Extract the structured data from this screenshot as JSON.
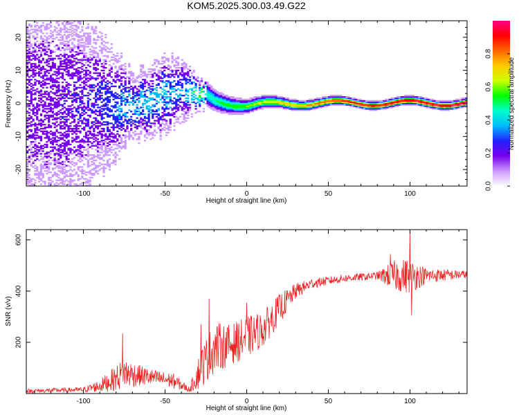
{
  "title": "KOM5.2025.300.03.49.G22",
  "chart_data": [
    {
      "type": "heatmap",
      "name": "spectrogram",
      "xlabel": "Height of straight line (km)",
      "ylabel": "Frequency (Hz)",
      "xlim": [
        -135,
        135
      ],
      "ylim": [
        -25,
        25
      ],
      "xticks": [
        -100,
        -50,
        0,
        50,
        100
      ],
      "yticks": [
        -20,
        -10,
        0,
        10,
        20
      ],
      "colorbar": {
        "label": "Normalized spectral amplitude",
        "range": [
          0,
          1
        ],
        "ticks": [
          0.0,
          0.2,
          0.4,
          0.6,
          0.8
        ],
        "colors": [
          "#ffffff",
          "#cc99ff",
          "#7700ee",
          "#2222ff",
          "#00bbff",
          "#00ffcc",
          "#00ff00",
          "#ccff00",
          "#ffcc00",
          "#ff6600",
          "#ff0000",
          "#ff0088"
        ]
      },
      "ridge": [
        {
          "x": -130,
          "f": 0,
          "amp": 0.15,
          "spread": 22
        },
        {
          "x": -90,
          "f": 0,
          "amp": 0.2,
          "spread": 12
        },
        {
          "x": -70,
          "f": -1,
          "amp": 0.3,
          "spread": 5
        },
        {
          "x": -50,
          "f": 2,
          "amp": 0.3,
          "spread": 6
        },
        {
          "x": -40,
          "f": 4,
          "amp": 0.25,
          "spread": 5
        },
        {
          "x": -28,
          "f": 3,
          "amp": 0.45,
          "spread": 2
        },
        {
          "x": -20,
          "f": 1,
          "amp": 0.5,
          "spread": 1.5
        },
        {
          "x": 0,
          "f": -1,
          "amp": 0.6,
          "spread": 1
        },
        {
          "x": 20,
          "f": 0,
          "amp": 0.7,
          "spread": 0.8
        },
        {
          "x": 60,
          "f": 0,
          "amp": 0.9,
          "spread": 0.6
        },
        {
          "x": 100,
          "f": 0,
          "amp": 0.95,
          "spread": 0.6
        },
        {
          "x": 135,
          "f": 0,
          "amp": 1.0,
          "spread": 0.6
        }
      ]
    },
    {
      "type": "line",
      "name": "snr",
      "xlabel": "Height of straight line (km)",
      "ylabel": "SNR (v/v)",
      "xlim": [
        -135,
        135
      ],
      "ylim": [
        0,
        640
      ],
      "xticks": [
        -100,
        -50,
        0,
        50,
        100
      ],
      "yticks": [
        200,
        400,
        600
      ],
      "color": "#ee2222",
      "trend": {
        "x": [
          -135,
          -100,
          -90,
          -80,
          -75,
          -65,
          -55,
          -45,
          -35,
          -28,
          -20,
          -10,
          0,
          10,
          20,
          30,
          40,
          60,
          80,
          90,
          100,
          110,
          135
        ],
        "y": [
          10,
          15,
          30,
          60,
          80,
          70,
          60,
          50,
          15,
          100,
          180,
          190,
          220,
          250,
          330,
          400,
          430,
          450,
          460,
          460,
          460,
          460,
          465
        ],
        "noise": [
          8,
          10,
          25,
          50,
          60,
          40,
          30,
          30,
          10,
          80,
          100,
          80,
          80,
          70,
          60,
          30,
          20,
          15,
          15,
          60,
          70,
          30,
          15
        ]
      },
      "spikes": [
        {
          "x": -76,
          "y": 235
        },
        {
          "x": -28,
          "y": 270
        },
        {
          "x": -23,
          "y": 370
        },
        {
          "x": 0,
          "y": 355
        },
        {
          "x": 88,
          "y": 545
        },
        {
          "x": 100,
          "y": 635
        },
        {
          "x": 101,
          "y": 305
        }
      ]
    }
  ]
}
